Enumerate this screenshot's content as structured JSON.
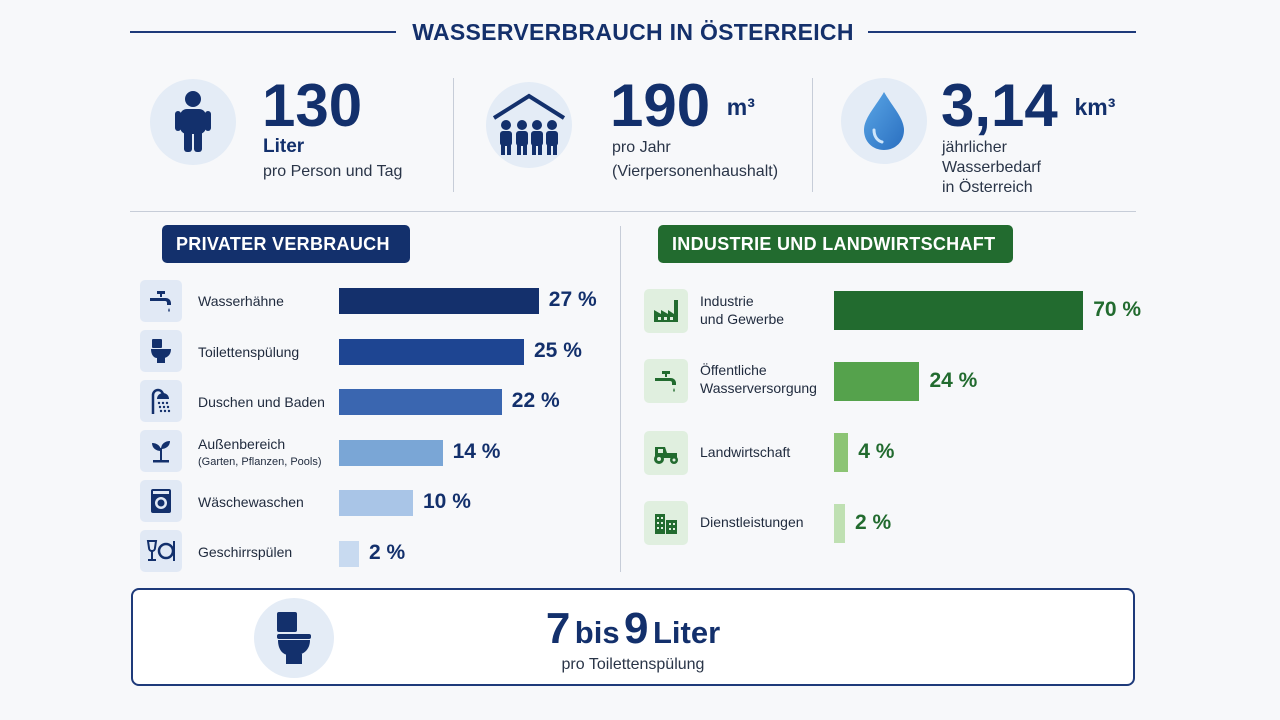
{
  "title": "WASSERVERBRAUCH IN ÖSTERREICH",
  "stats": [
    {
      "value": "130",
      "unit": "",
      "line1": "Liter",
      "line2": "pro Person und Tag",
      "line3": "",
      "icon": "person-icon"
    },
    {
      "value": "190",
      "unit": "m³",
      "line1": "pro Jahr",
      "line2": "(Vierpersonenhaushalt)",
      "line3": "",
      "icon": "household-icon"
    },
    {
      "value": "3,14",
      "unit": "km³",
      "line1": "jährlicher",
      "line2": "Wasserbedarf",
      "line3": "in Österreich",
      "icon": "water-drop-icon"
    }
  ],
  "private": {
    "header": "PRIVATER VERBRAUCH",
    "items": [
      {
        "label": "Wasserhähne",
        "sub": "",
        "value": 27,
        "pct": "27 %",
        "color": "#14306c",
        "icon": "faucet-icon"
      },
      {
        "label": "Toilettenspülung",
        "sub": "",
        "value": 25,
        "pct": "25 %",
        "color": "#1e4592",
        "icon": "toilet-icon"
      },
      {
        "label": "Duschen und Baden",
        "sub": "",
        "value": 22,
        "pct": "22 %",
        "color": "#3a66b0",
        "icon": "shower-icon"
      },
      {
        "label": "Außenbereich",
        "sub": "(Garten, Pflanzen, Pools)",
        "value": 14,
        "pct": "14 %",
        "color": "#7aa6d6",
        "icon": "plant-icon"
      },
      {
        "label": "Wäschewaschen",
        "sub": "",
        "value": 10,
        "pct": "10 %",
        "color": "#a9c5e7",
        "icon": "washing-machine-icon"
      },
      {
        "label": "Geschirrspülen",
        "sub": "",
        "value": 2,
        "pct": "2 %",
        "color": "#c8daf0",
        "icon": "dishes-icon"
      }
    ]
  },
  "industry": {
    "header": "INDUSTRIE UND LANDWIRTSCHAFT",
    "items": [
      {
        "label": "Industrie",
        "sub": "und Gewerbe",
        "value": 70,
        "pct": "70 %",
        "color": "#226b2f",
        "icon": "factory-icon"
      },
      {
        "label": "Öffentliche",
        "sub": "Wasserversorgung",
        "value": 24,
        "pct": "24 %",
        "color": "#55a24c",
        "icon": "faucet-icon"
      },
      {
        "label": "Landwirtschaft",
        "sub": "",
        "value": 4,
        "pct": "4 %",
        "color": "#8cc474",
        "icon": "tractor-icon"
      },
      {
        "label": "Dienstleistungen",
        "sub": "",
        "value": 2,
        "pct": "2 %",
        "color": "#bfe0b2",
        "icon": "buildings-icon"
      }
    ]
  },
  "bottom": {
    "num1": "7",
    "word1": "bis",
    "num2": "9",
    "word2": "Liter",
    "sub": "pro Toilettenspülung",
    "icon": "toilet-icon"
  },
  "chart_data": [
    {
      "type": "bar",
      "title": "PRIVATER VERBRAUCH",
      "categories": [
        "Wasserhähne",
        "Toilettenspülung",
        "Duschen und Baden",
        "Außenbereich (Garten, Pflanzen, Pools)",
        "Wäschewaschen",
        "Geschirrspülen"
      ],
      "values": [
        27,
        25,
        22,
        14,
        10,
        2
      ],
      "unit": "%"
    },
    {
      "type": "bar",
      "title": "INDUSTRIE UND LANDWIRTSCHAFT",
      "categories": [
        "Industrie und Gewerbe",
        "Öffentliche Wasserversorgung",
        "Landwirtschaft",
        "Dienstleistungen"
      ],
      "values": [
        70,
        24,
        4,
        2
      ],
      "unit": "%"
    }
  ]
}
